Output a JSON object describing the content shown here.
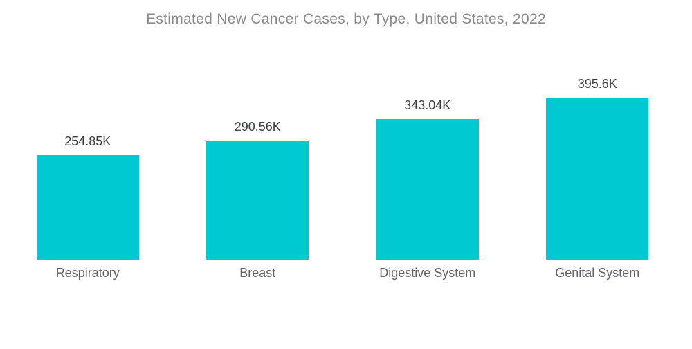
{
  "chart_data": {
    "type": "bar",
    "title": "Estimated New Cancer Cases, by Type, United States, 2022",
    "categories": [
      "Respiratory",
      "Breast",
      "Digestive System",
      "Genital System"
    ],
    "values": [
      254.85,
      290.56,
      343.04,
      395.6
    ],
    "value_labels": [
      "254.85K",
      "290.56K",
      "343.04K",
      "395.6K"
    ],
    "unit": "K",
    "xlabel": "",
    "ylabel": "",
    "grid": false,
    "legend": false,
    "axis_lines": false,
    "bar_color": "#00c9d2",
    "title_color": "#8a8a8d",
    "value_label_color": "#3d3e40",
    "category_label_color": "#616367",
    "background_color": "#ffffff"
  }
}
